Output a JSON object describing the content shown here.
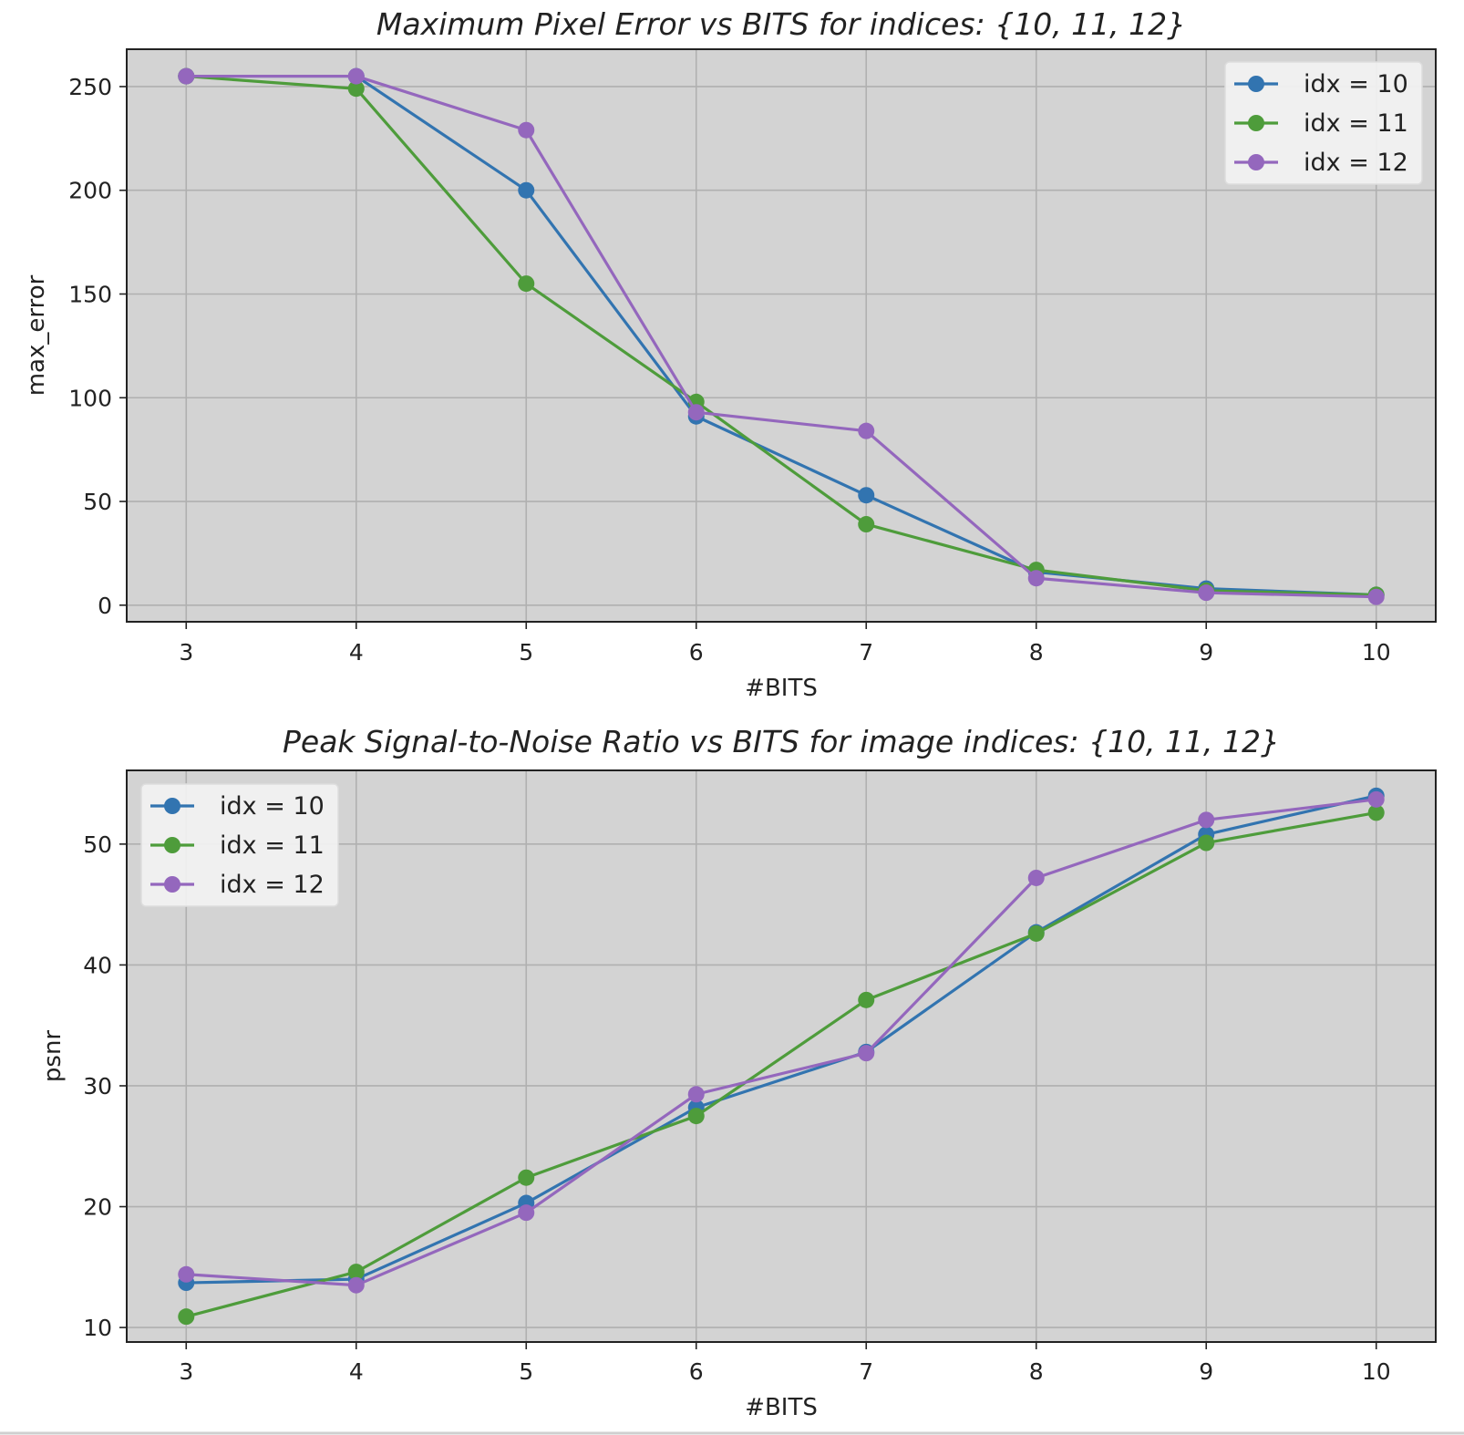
{
  "chart_data": [
    {
      "type": "line",
      "title": "Maximum Pixel Error vs BITS for indices: {10, 11, 12}",
      "xlabel": "#BITS",
      "ylabel": "max_error",
      "x": [
        3,
        4,
        5,
        6,
        7,
        8,
        9,
        10
      ],
      "xticks": [
        "3",
        "4",
        "5",
        "6",
        "7",
        "8",
        "9",
        "10"
      ],
      "yticks": [
        "0",
        "50",
        "100",
        "150",
        "200",
        "250"
      ],
      "xlim": [
        2.65,
        10.35
      ],
      "ylim": [
        -8,
        268
      ],
      "grid": true,
      "legend_position": "upper right",
      "series": [
        {
          "name": "idx = 10",
          "color": "#3274b0",
          "values": [
            255,
            255,
            200,
            91,
            53,
            16,
            8,
            5
          ]
        },
        {
          "name": "idx = 11",
          "color": "#4e9c3b",
          "values": [
            255,
            249,
            155,
            98,
            39,
            17,
            7,
            5
          ]
        },
        {
          "name": "idx = 12",
          "color": "#9467bd",
          "values": [
            255,
            255,
            229,
            93,
            84,
            13,
            6,
            4
          ]
        }
      ]
    },
    {
      "type": "line",
      "title": "Peak Signal-to-Noise Ratio vs BITS for image indices: {10, 11, 12}",
      "xlabel": "#BITS",
      "ylabel": "psnr",
      "x": [
        3,
        4,
        5,
        6,
        7,
        8,
        9,
        10
      ],
      "xticks": [
        "3",
        "4",
        "5",
        "6",
        "7",
        "8",
        "9",
        "10"
      ],
      "yticks": [
        "10",
        "20",
        "30",
        "40",
        "50"
      ],
      "xlim": [
        2.65,
        10.35
      ],
      "ylim": [
        8.8,
        56.1
      ],
      "grid": true,
      "legend_position": "upper left",
      "series": [
        {
          "name": "idx = 10",
          "color": "#3274b0",
          "values": [
            13.7,
            14.0,
            20.3,
            28.2,
            32.8,
            42.7,
            50.8,
            54.0
          ]
        },
        {
          "name": "idx = 11",
          "color": "#4e9c3b",
          "values": [
            10.9,
            14.6,
            22.4,
            27.5,
            37.1,
            42.6,
            50.1,
            52.6
          ]
        },
        {
          "name": "idx = 12",
          "color": "#9467bd",
          "values": [
            14.4,
            13.5,
            19.5,
            29.3,
            32.7,
            47.2,
            52.0,
            53.7
          ]
        }
      ]
    }
  ]
}
